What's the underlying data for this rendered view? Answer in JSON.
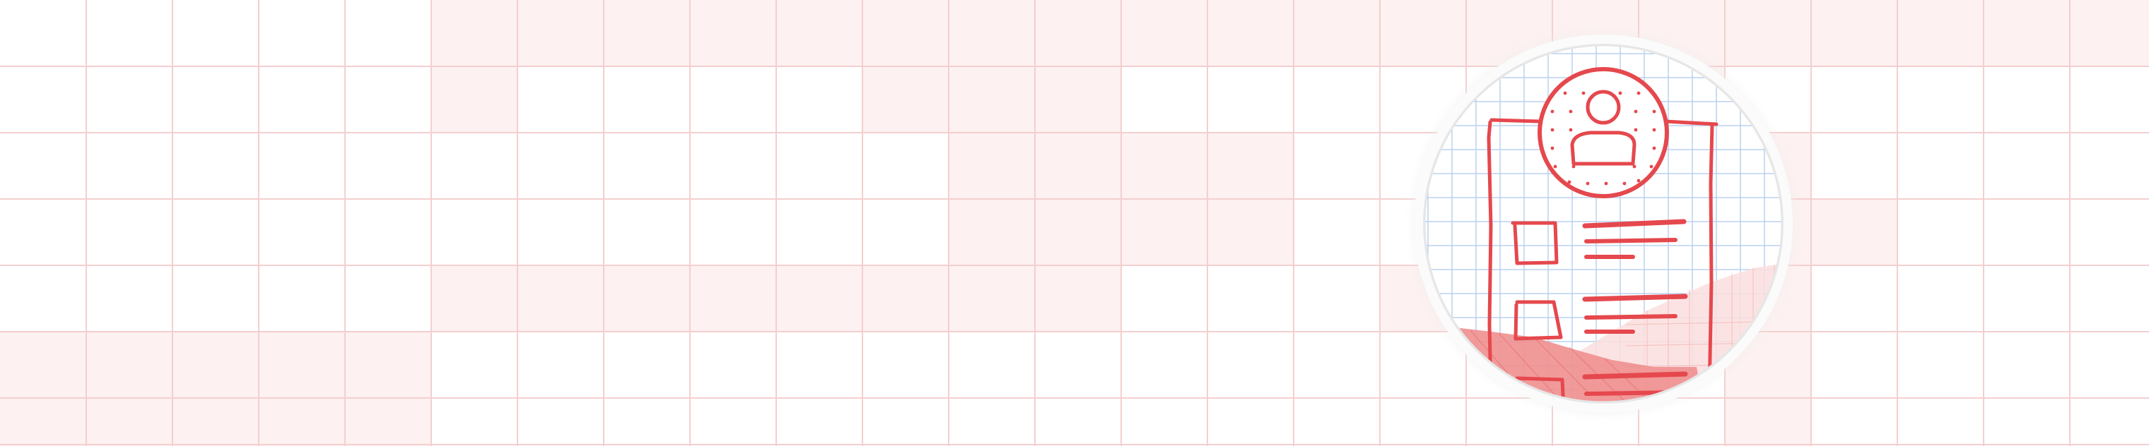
{
  "banner": {
    "name": "wireframe-sketch-banner",
    "colors": {
      "background": "#ffffff",
      "grid_line": "#f4cfcf",
      "cell_tint": "#fdf1f1",
      "sketch_stroke": "#e5484d",
      "sketch_fill_dark": "#ef8f8f",
      "sketch_fill_light": "#fbdede",
      "lens_grid": "#bcd0f0",
      "lens_ring": "#f3f3f3"
    },
    "emblem": {
      "icon": "profile-wireframe-icon",
      "content_rows": 3,
      "lines_per_row": 3
    }
  }
}
